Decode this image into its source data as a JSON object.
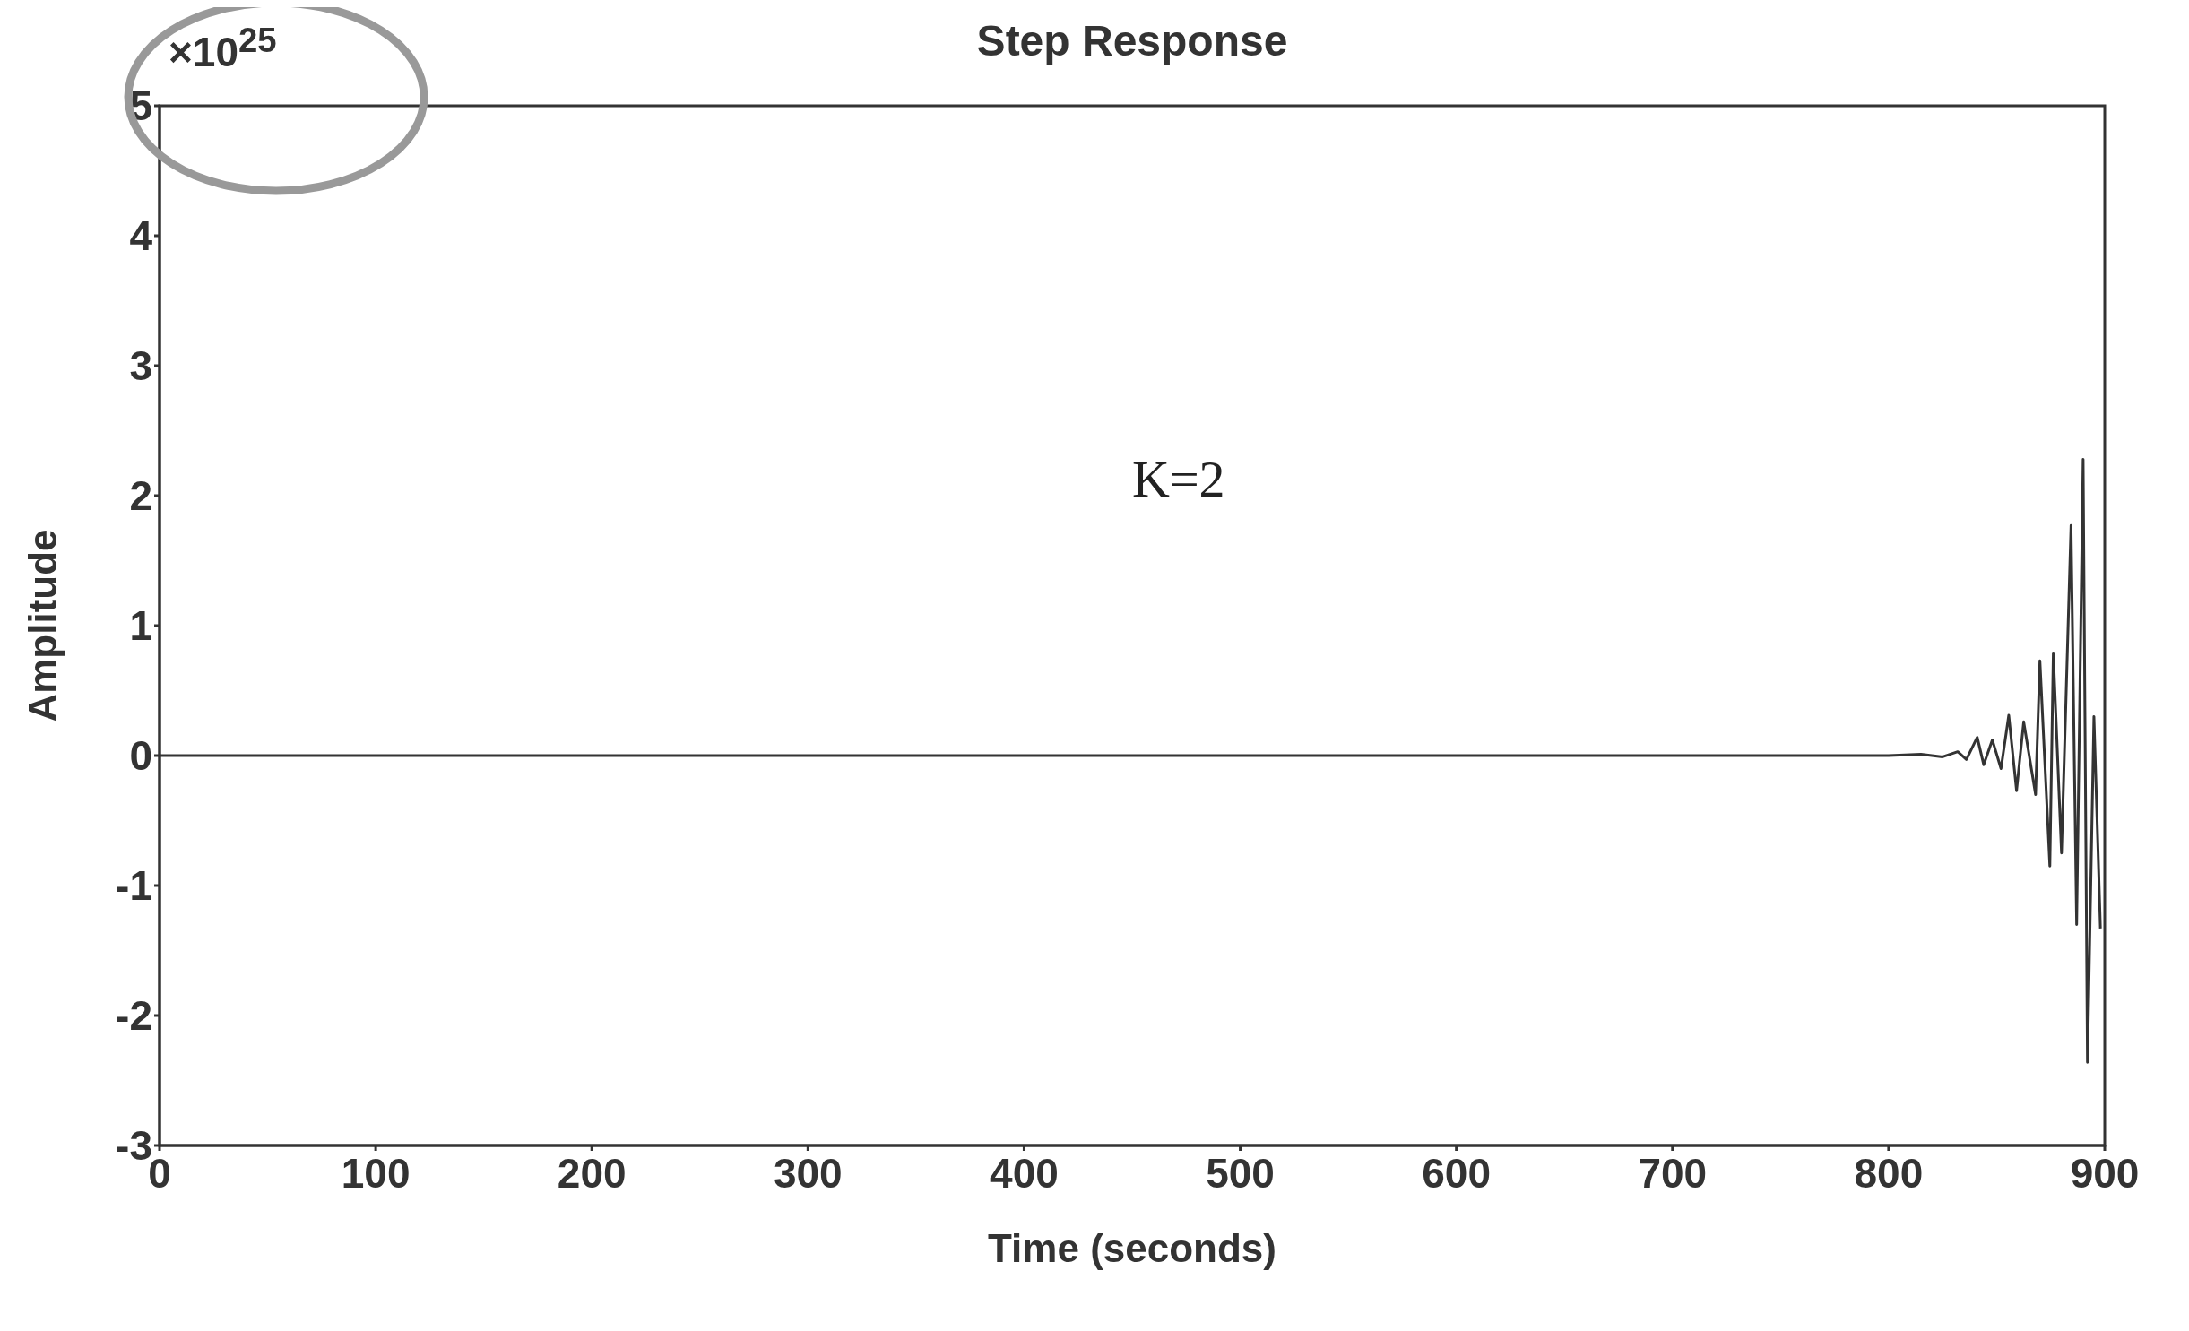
{
  "chart_data": {
    "type": "line",
    "title": "Step Response",
    "xlabel": "Time (seconds)",
    "ylabel": "Amplitude",
    "annotations": [
      "×10$^{25}$",
      "K=2"
    ],
    "x": [
      0,
      700,
      800,
      815,
      825,
      832,
      836,
      841,
      844,
      848,
      852,
      855.6,
      859.2,
      862.5,
      868,
      870,
      874.6,
      876.2,
      880,
      884.4,
      887,
      890,
      892,
      895,
      898
    ],
    "series": [
      {
        "color": "#333333",
        "values": [
          0,
          0,
          0,
          0.01,
          -0.01,
          0.03,
          -0.03,
          0.14,
          -0.07,
          0.12,
          -0.1,
          0.31,
          -0.27,
          0.26,
          -0.3,
          0.73,
          -0.85,
          0.79,
          -0.75,
          1.77,
          -1.3,
          2.28,
          -2.36,
          0.3,
          -1.33
        ]
      }
    ],
    "xlim": [
      0,
      900
    ],
    "xticks": [
      0,
      100,
      200,
      300,
      400,
      500,
      600,
      700,
      800,
      900
    ],
    "ylim": [
      -3,
      5
    ],
    "yticks": [
      -3,
      -2,
      -1,
      0,
      1,
      2,
      3,
      4,
      5
    ],
    "grid": false,
    "legend": false,
    "marker": "none",
    "line_style": "solid"
  }
}
